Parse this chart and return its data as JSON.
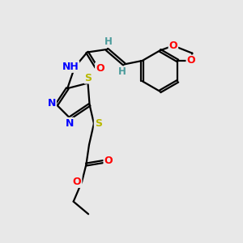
{
  "bg_color": "#e8e8e8",
  "atom_colors": {
    "C": "#000000",
    "H": "#4a9b9b",
    "N": "#0000ff",
    "O": "#ff0000",
    "S": "#b8b800"
  },
  "bond_color": "#000000",
  "bond_width": 1.6,
  "font_size_atom": 9,
  "font_size_h": 8.5
}
